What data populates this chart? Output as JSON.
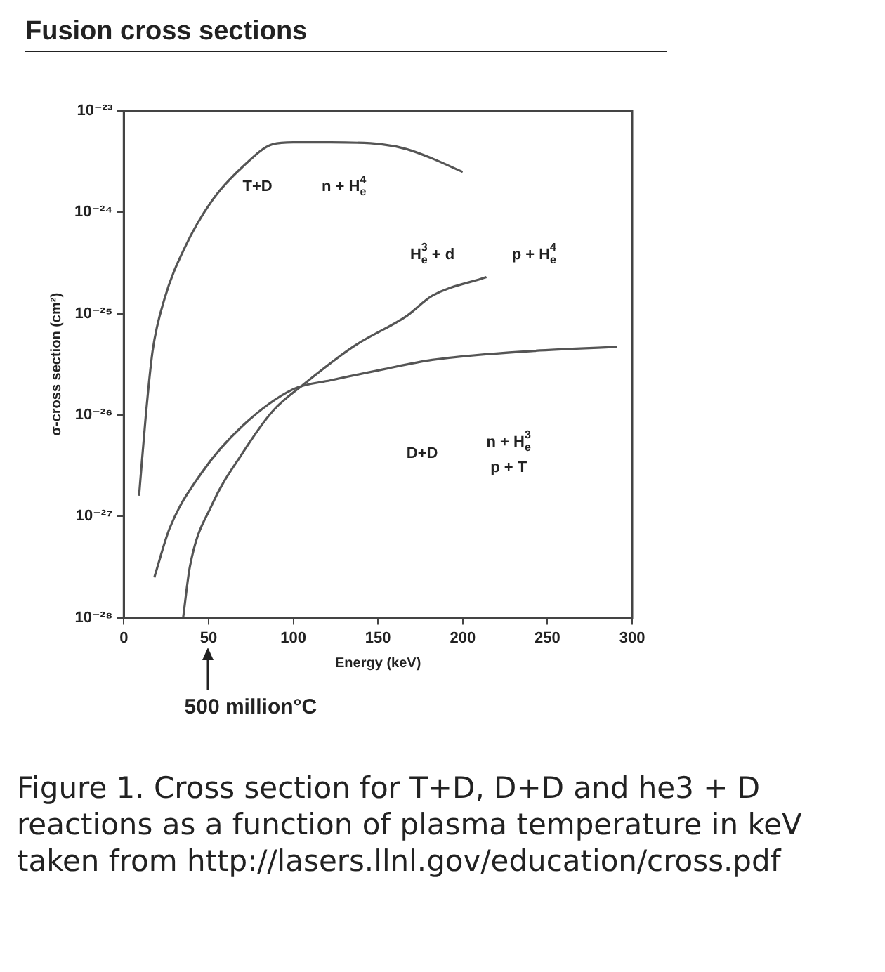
{
  "chart_data": {
    "type": "line",
    "title": "Fusion cross sections",
    "xlabel": "Energy (keV)",
    "ylabel": "σ-cross section (cm²)",
    "log": "y",
    "grid": false,
    "legend": false,
    "marker": "none",
    "line_style": "solid",
    "xlim": [
      0,
      300
    ],
    "xticks": [
      0,
      50,
      100,
      150,
      200,
      250,
      300
    ],
    "ylim": [
      1e-28,
      1e-23
    ],
    "yticks": [
      {
        "value": 1e-28,
        "label": "10⁻²⁸"
      },
      {
        "value": 1e-27,
        "label": "10⁻²⁷"
      },
      {
        "value": 1e-26,
        "label": "10⁻²⁶"
      },
      {
        "value": 1e-25,
        "label": "10⁻²⁵"
      },
      {
        "value": 1e-24,
        "label": "10⁻²⁴"
      },
      {
        "value": 1e-23,
        "label": "10⁻²³"
      }
    ],
    "series": [
      {
        "color": "#555555",
        "x": [
          9,
          13,
          17,
          24,
          36,
          52,
          70,
          88,
          100,
          122,
          152,
          167,
          182,
          200
        ],
        "values": [
          1.6e-27,
          1e-26,
          4.3e-26,
          1.4e-25,
          4.5e-25,
          1.3e-24,
          2.8e-24,
          4.7e-24,
          4.9e-24,
          4.9e-24,
          4.7e-24,
          4.2e-24,
          3.4e-24,
          2.5e-24
        ]
      },
      {
        "color": "#555555",
        "x": [
          35,
          39,
          52,
          70,
          88,
          106,
          136,
          167,
          182,
          214
        ],
        "values": [
          1e-28,
          3.2e-28,
          1.3e-27,
          4.2e-27,
          1.1e-26,
          2e-26,
          4.8e-26,
          9.5e-26,
          1.5e-25,
          2.3e-25
        ]
      },
      {
        "color": "#555555",
        "x": [
          18,
          27,
          46,
          70,
          100,
          122,
          152,
          182,
          242,
          291
        ],
        "values": [
          2.5e-28,
          7.6e-28,
          2.7e-27,
          7.8e-27,
          1.8e-26,
          2.2e-26,
          2.8e-26,
          3.5e-26,
          4.3e-26,
          4.7e-26
        ]
      }
    ],
    "annotations": [
      "T+D",
      "n + H$^{4}$$_{e}$",
      "H$^{3}$$_{e}$ + d",
      "p + H$^{4}$$_{e}$",
      "D+D",
      "n + H$^{3}$$_{e}$",
      "p + T",
      "500 million°C",
      "Figure 1. Cross section for T+D, D+D and he3 + D reactions as a function of plasma temperature in keV taken from http://lasers.llnl.gov/education/cross.pdf"
    ]
  }
}
